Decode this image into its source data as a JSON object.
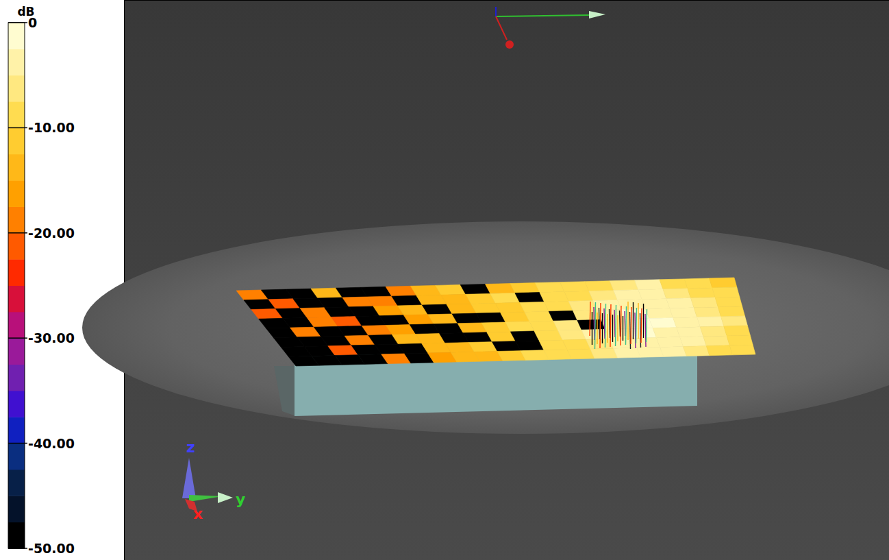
{
  "chart_data": {
    "type": "heatmap",
    "colorbar": {
      "title": "dB",
      "range": [
        -50,
        0
      ],
      "ticks": [
        0,
        {
          "value": -10,
          "label": "-10.00"
        },
        {
          "value": -20,
          "label": "-20.00"
        },
        {
          "value": -30,
          "label": "-30.00"
        },
        {
          "value": -40,
          "label": "-40.00"
        },
        {
          "value": -50,
          "label": "-50.00"
        }
      ]
    },
    "triad_labels": [
      "z",
      "y",
      "x"
    ],
    "cells": [
      [
        -20,
        -50,
        -50,
        -15,
        -50,
        -50,
        -18,
        -15,
        -12,
        -50,
        -14,
        -12,
        -10,
        -8,
        -10,
        -6,
        -5,
        -8,
        -10,
        -12
      ],
      [
        -50,
        -22,
        -50,
        -50,
        -20,
        -18,
        -50,
        -14,
        -15,
        -12,
        -10,
        -50,
        -10,
        -8,
        -6,
        -5,
        -4,
        -6,
        -8,
        -10
      ],
      [
        -22,
        -50,
        -20,
        -50,
        -50,
        -16,
        -15,
        -50,
        -14,
        -12,
        -11,
        -9,
        -8,
        -7,
        -5,
        -3,
        -4,
        -5,
        -7,
        -9
      ],
      [
        -50,
        -50,
        -18,
        -22,
        -50,
        -50,
        -17,
        -14,
        -50,
        -50,
        -12,
        -10,
        -50,
        -6,
        -4,
        -2,
        -3,
        -4,
        -6,
        -8
      ],
      [
        -50,
        -20,
        -50,
        -50,
        -19,
        -16,
        -50,
        -50,
        -13,
        -11,
        -10,
        -9,
        -7,
        -50,
        -3,
        -2,
        -2,
        -4,
        -5,
        -7
      ],
      [
        -50,
        -50,
        -50,
        -18,
        -50,
        -15,
        -14,
        -50,
        -50,
        -12,
        -50,
        -8,
        -7,
        -5,
        -3,
        -2,
        -3,
        -4,
        -6,
        -8
      ],
      [
        -50,
        -50,
        -21,
        -50,
        -50,
        -50,
        -15,
        -13,
        -12,
        -50,
        -50,
        -9,
        -8,
        -6,
        -4,
        -3,
        -4,
        -5,
        -7,
        -9
      ],
      [
        -50,
        -50,
        -50,
        -50,
        -20,
        -50,
        -16,
        -14,
        -13,
        -11,
        -10,
        -9,
        -8,
        -7,
        -5,
        -4,
        -5,
        -6,
        -8,
        -10
      ]
    ]
  }
}
